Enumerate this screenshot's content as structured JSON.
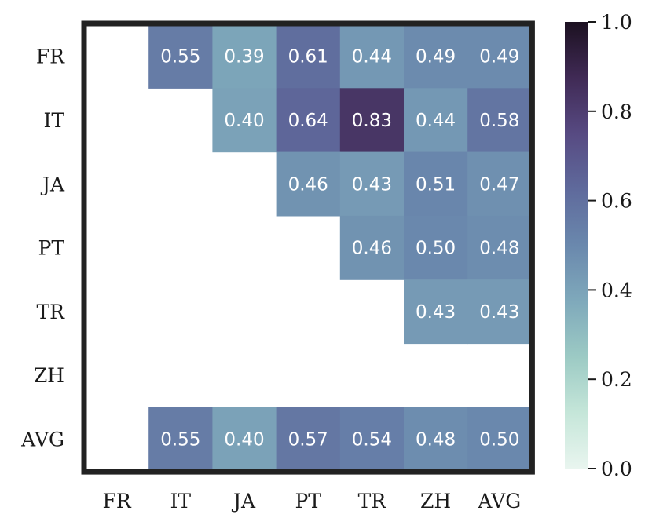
{
  "chart_data": {
    "type": "heatmap",
    "title": "",
    "xlabel": "",
    "ylabel": "",
    "x_categories": [
      "FR",
      "IT",
      "JA",
      "PT",
      "TR",
      "ZH",
      "AVG"
    ],
    "y_categories": [
      "FR",
      "IT",
      "JA",
      "PT",
      "TR",
      "ZH",
      "AVG"
    ],
    "values": [
      [
        null,
        0.55,
        0.39,
        0.61,
        0.44,
        0.49,
        0.49
      ],
      [
        null,
        null,
        0.4,
        0.64,
        0.83,
        0.44,
        0.58
      ],
      [
        null,
        null,
        null,
        0.46,
        0.43,
        0.51,
        0.47
      ],
      [
        null,
        null,
        null,
        null,
        0.46,
        0.5,
        0.48
      ],
      [
        null,
        null,
        null,
        null,
        null,
        0.43,
        0.43
      ],
      [
        null,
        null,
        null,
        null,
        null,
        null,
        null
      ],
      [
        null,
        0.55,
        0.4,
        0.57,
        0.54,
        0.48,
        0.5
      ]
    ],
    "value_labels": [
      [
        "",
        "0.55",
        "0.39",
        "0.61",
        "0.44",
        "0.49",
        "0.49"
      ],
      [
        "",
        "",
        "0.40",
        "0.64",
        "0.83",
        "0.44",
        "0.58"
      ],
      [
        "",
        "",
        "",
        "0.46",
        "0.43",
        "0.51",
        "0.47"
      ],
      [
        "",
        "",
        "",
        "",
        "0.46",
        "0.50",
        "0.48"
      ],
      [
        "",
        "",
        "",
        "",
        "",
        "0.43",
        "0.43"
      ],
      [
        "",
        "",
        "",
        "",
        "",
        "",
        ""
      ],
      [
        "",
        "0.55",
        "0.40",
        "0.57",
        "0.54",
        "0.48",
        "0.50"
      ]
    ],
    "colorbar": {
      "range": [
        0.0,
        1.0
      ],
      "ticks": [
        0.0,
        0.2,
        0.4,
        0.6,
        0.8,
        1.0
      ],
      "tick_labels": [
        "0.0",
        "0.2",
        "0.4",
        "0.6",
        "0.8",
        "1.0"
      ]
    },
    "colormap": [
      "#e9f5ef",
      "#c5e6d9",
      "#9ccac4",
      "#7fa9bb",
      "#6a88ad",
      "#5f6a9c",
      "#574a82",
      "#402a55",
      "#1c1121"
    ],
    "border_color": "#222222"
  }
}
